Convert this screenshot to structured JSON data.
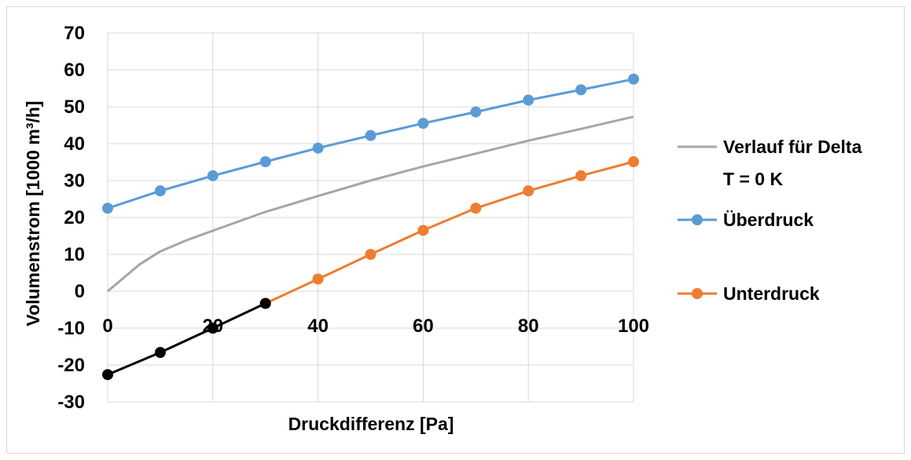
{
  "chart_data": {
    "type": "line",
    "xlabel": "Druckdifferenz [Pa]",
    "ylabel": "Volumenstrom [1000 m³/h]",
    "xlim": [
      0,
      100
    ],
    "ylim": [
      -30,
      70
    ],
    "x_ticks": [
      "0",
      "20",
      "40",
      "60",
      "80",
      "100"
    ],
    "y_ticks": [
      "70",
      "60",
      "50",
      "40",
      "30",
      "20",
      "10",
      "0",
      "-10",
      "-20",
      "-30"
    ],
    "grid": true,
    "legend_position": "right",
    "series": [
      {
        "name": "Verlauf für Delta T = 0 K",
        "legend_lines": [
          "Verlauf für Delta",
          "T = 0 K"
        ],
        "color": "#a6a6a6",
        "markers": false,
        "x": [
          0,
          3,
          6,
          10,
          15,
          20,
          30,
          40,
          50,
          60,
          70,
          80,
          90,
          100
        ],
        "y": [
          0,
          3.6,
          7.2,
          10.8,
          13.8,
          16.4,
          21.5,
          25.8,
          30.0,
          33.8,
          37.3,
          40.8,
          44.0,
          47.3
        ]
      },
      {
        "name": "Überdruck",
        "color": "#5b9bd5",
        "markers": true,
        "x": [
          0,
          10,
          20,
          30,
          40,
          50,
          60,
          70,
          80,
          90,
          100
        ],
        "y": [
          22.5,
          27.2,
          31.3,
          35.1,
          38.8,
          42.2,
          45.5,
          48.6,
          51.8,
          54.6,
          57.5
        ]
      },
      {
        "name": "Unterdruck",
        "color": "#ed7d31",
        "markers": true,
        "x": [
          30,
          40,
          50,
          60,
          70,
          80,
          90,
          100
        ],
        "y": [
          -3.3,
          3.3,
          10.0,
          16.5,
          22.5,
          27.2,
          31.3,
          35.1
        ]
      },
      {
        "name": "",
        "color": "#000000",
        "markers": true,
        "x": [
          0,
          10,
          20,
          30
        ],
        "y": [
          -22.6,
          -16.6,
          -10.0,
          -3.3
        ]
      }
    ]
  }
}
